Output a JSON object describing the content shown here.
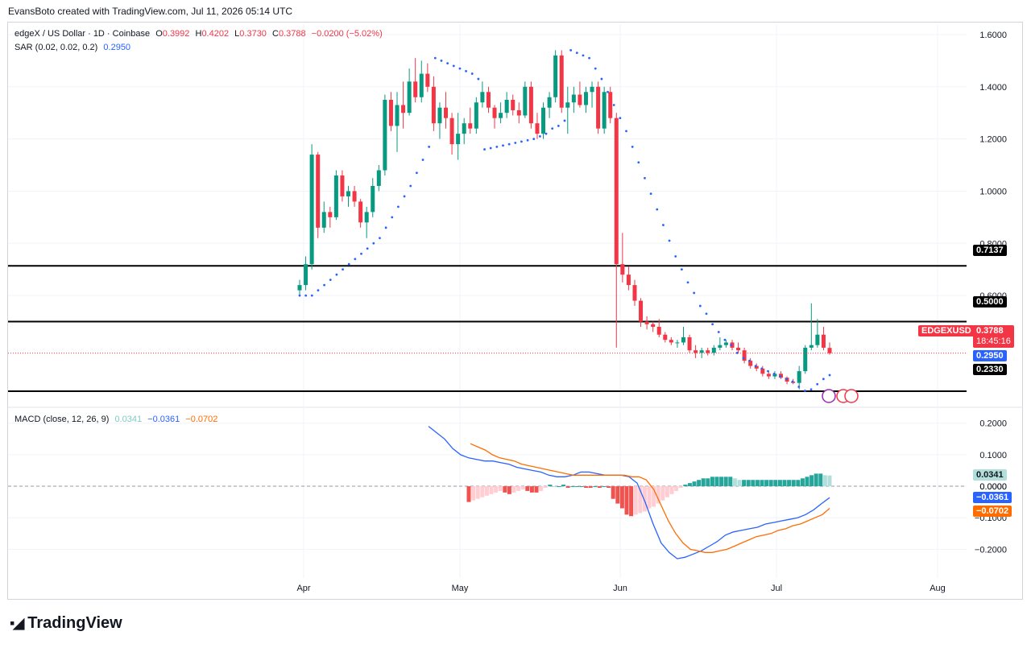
{
  "header": {
    "attribution": "EvansBoto created with TradingView.com, Jul 11, 2026 05:14 UTC"
  },
  "legend": {
    "symbol": "edgeX / US Dollar · 1D · Coinbase",
    "open_label": "O",
    "open": "0.3992",
    "high_label": "H",
    "high": "0.4202",
    "low_label": "L",
    "low": "0.3730",
    "close_label": "C",
    "close": "0.3788",
    "change": "−0.0200 (−5.02%)",
    "sar_label": "SAR (0.02, 0.02, 0.2)",
    "sar_value": "0.2950",
    "macd_label": "MACD (close, 12, 26, 9)",
    "macd_hist": "0.0341",
    "macd_line": "−0.0361",
    "macd_signal": "−0.0702"
  },
  "tags": {
    "level_7137": "0.7137",
    "level_5000": "0.5000",
    "level_2330": "0.2330",
    "symbol": "EDGEXUSD",
    "price": "0.3788",
    "countdown": "18:45:16",
    "sar": "0.2950",
    "hist": "0.0341",
    "zero": "0.0000",
    "macd": "−0.0361",
    "signal": "−0.0702"
  },
  "logo": {
    "text": "TradingView"
  },
  "colors": {
    "up": "#089981",
    "down": "#f23645",
    "sar": "#2962ff",
    "macd": "#2962ff",
    "signal": "#ff6d00",
    "hist_up_strong": "#26a69a",
    "hist_up_weak": "#b2dfdb",
    "hist_down_strong": "#ef5350",
    "hist_down_weak": "#ffcdd2"
  },
  "chart_data": [
    {
      "type": "candlestick",
      "title": "edgeX / US Dollar · 1D · Coinbase",
      "x_ticks": [
        "Apr",
        "May",
        "Jun",
        "Jul",
        "Aug"
      ],
      "y_ticks": [
        "1.6000",
        "1.4000",
        "1.2000",
        "1.0000",
        "0.8000",
        "0.6000"
      ],
      "ylim": [
        0.19,
        1.64
      ],
      "horizontal_levels": [
        0.7137,
        0.5,
        0.233
      ],
      "candles": [
        {
          "o": 0.62,
          "h": 0.66,
          "l": 0.6,
          "c": 0.64
        },
        {
          "o": 0.64,
          "h": 0.75,
          "l": 0.62,
          "c": 0.72
        },
        {
          "o": 0.72,
          "h": 1.18,
          "l": 0.7,
          "c": 1.14
        },
        {
          "o": 1.14,
          "h": 1.15,
          "l": 0.82,
          "c": 0.86
        },
        {
          "o": 0.86,
          "h": 0.96,
          "l": 0.84,
          "c": 0.92
        },
        {
          "o": 0.92,
          "h": 0.94,
          "l": 0.86,
          "c": 0.9
        },
        {
          "o": 0.9,
          "h": 1.08,
          "l": 0.89,
          "c": 1.06
        },
        {
          "o": 1.06,
          "h": 1.08,
          "l": 0.96,
          "c": 0.98
        },
        {
          "o": 0.98,
          "h": 1.02,
          "l": 0.94,
          "c": 1.0
        },
        {
          "o": 1.0,
          "h": 1.02,
          "l": 0.94,
          "c": 0.96
        },
        {
          "o": 0.96,
          "h": 0.97,
          "l": 0.86,
          "c": 0.88
        },
        {
          "o": 0.88,
          "h": 0.94,
          "l": 0.82,
          "c": 0.92
        },
        {
          "o": 0.92,
          "h": 1.05,
          "l": 0.9,
          "c": 1.02
        },
        {
          "o": 1.02,
          "h": 1.1,
          "l": 1.0,
          "c": 1.08
        },
        {
          "o": 1.08,
          "h": 1.37,
          "l": 1.06,
          "c": 1.35
        },
        {
          "o": 1.35,
          "h": 1.38,
          "l": 1.23,
          "c": 1.25
        },
        {
          "o": 1.25,
          "h": 1.38,
          "l": 1.15,
          "c": 1.33
        },
        {
          "o": 1.33,
          "h": 1.42,
          "l": 1.24,
          "c": 1.3
        },
        {
          "o": 1.3,
          "h": 1.47,
          "l": 1.29,
          "c": 1.42
        },
        {
          "o": 1.42,
          "h": 1.51,
          "l": 1.34,
          "c": 1.36
        },
        {
          "o": 1.36,
          "h": 1.5,
          "l": 1.34,
          "c": 1.45
        },
        {
          "o": 1.45,
          "h": 1.49,
          "l": 1.38,
          "c": 1.4
        },
        {
          "o": 1.4,
          "h": 1.44,
          "l": 1.23,
          "c": 1.26
        },
        {
          "o": 1.26,
          "h": 1.34,
          "l": 1.2,
          "c": 1.32
        },
        {
          "o": 1.32,
          "h": 1.38,
          "l": 1.24,
          "c": 1.28
        },
        {
          "o": 1.28,
          "h": 1.3,
          "l": 1.14,
          "c": 1.18
        },
        {
          "o": 1.18,
          "h": 1.3,
          "l": 1.12,
          "c": 1.22
        },
        {
          "o": 1.22,
          "h": 1.28,
          "l": 1.18,
          "c": 1.26
        },
        {
          "o": 1.26,
          "h": 1.32,
          "l": 1.22,
          "c": 1.24
        },
        {
          "o": 1.24,
          "h": 1.36,
          "l": 1.22,
          "c": 1.34
        },
        {
          "o": 1.34,
          "h": 1.42,
          "l": 1.32,
          "c": 1.38
        },
        {
          "o": 1.38,
          "h": 1.4,
          "l": 1.3,
          "c": 1.32
        },
        {
          "o": 1.32,
          "h": 1.33,
          "l": 1.24,
          "c": 1.28
        },
        {
          "o": 1.28,
          "h": 1.34,
          "l": 1.26,
          "c": 1.3
        },
        {
          "o": 1.3,
          "h": 1.38,
          "l": 1.28,
          "c": 1.35
        },
        {
          "o": 1.35,
          "h": 1.37,
          "l": 1.29,
          "c": 1.31
        },
        {
          "o": 1.31,
          "h": 1.34,
          "l": 1.26,
          "c": 1.29
        },
        {
          "o": 1.29,
          "h": 1.42,
          "l": 1.28,
          "c": 1.4
        },
        {
          "o": 1.4,
          "h": 1.42,
          "l": 1.24,
          "c": 1.26
        },
        {
          "o": 1.26,
          "h": 1.3,
          "l": 1.2,
          "c": 1.22
        },
        {
          "o": 1.22,
          "h": 1.34,
          "l": 1.2,
          "c": 1.32
        },
        {
          "o": 1.32,
          "h": 1.38,
          "l": 1.28,
          "c": 1.36
        },
        {
          "o": 1.36,
          "h": 1.54,
          "l": 1.34,
          "c": 1.52
        },
        {
          "o": 1.52,
          "h": 1.54,
          "l": 1.3,
          "c": 1.32
        },
        {
          "o": 1.32,
          "h": 1.4,
          "l": 1.22,
          "c": 1.34
        },
        {
          "o": 1.34,
          "h": 1.4,
          "l": 1.3,
          "c": 1.37
        },
        {
          "o": 1.37,
          "h": 1.42,
          "l": 1.32,
          "c": 1.33
        },
        {
          "o": 1.33,
          "h": 1.4,
          "l": 1.3,
          "c": 1.38
        },
        {
          "o": 1.38,
          "h": 1.42,
          "l": 1.32,
          "c": 1.4
        },
        {
          "o": 1.4,
          "h": 1.42,
          "l": 1.22,
          "c": 1.24
        },
        {
          "o": 1.24,
          "h": 1.4,
          "l": 1.22,
          "c": 1.38
        },
        {
          "o": 1.38,
          "h": 1.4,
          "l": 1.26,
          "c": 1.28
        },
        {
          "o": 1.28,
          "h": 1.3,
          "l": 0.4,
          "c": 0.72
        },
        {
          "o": 0.72,
          "h": 0.84,
          "l": 0.65,
          "c": 0.68
        },
        {
          "o": 0.68,
          "h": 0.71,
          "l": 0.62,
          "c": 0.64
        },
        {
          "o": 0.64,
          "h": 0.66,
          "l": 0.56,
          "c": 0.58
        },
        {
          "o": 0.58,
          "h": 0.59,
          "l": 0.48,
          "c": 0.5
        },
        {
          "o": 0.5,
          "h": 0.52,
          "l": 0.47,
          "c": 0.49
        },
        {
          "o": 0.49,
          "h": 0.5,
          "l": 0.46,
          "c": 0.48
        },
        {
          "o": 0.48,
          "h": 0.51,
          "l": 0.44,
          "c": 0.45
        },
        {
          "o": 0.45,
          "h": 0.46,
          "l": 0.42,
          "c": 0.43
        },
        {
          "o": 0.43,
          "h": 0.44,
          "l": 0.41,
          "c": 0.42
        },
        {
          "o": 0.42,
          "h": 0.43,
          "l": 0.4,
          "c": 0.42
        },
        {
          "o": 0.42,
          "h": 0.48,
          "l": 0.41,
          "c": 0.44
        },
        {
          "o": 0.44,
          "h": 0.45,
          "l": 0.38,
          "c": 0.39
        },
        {
          "o": 0.39,
          "h": 0.41,
          "l": 0.36,
          "c": 0.38
        },
        {
          "o": 0.38,
          "h": 0.4,
          "l": 0.36,
          "c": 0.39
        },
        {
          "o": 0.39,
          "h": 0.4,
          "l": 0.37,
          "c": 0.38
        },
        {
          "o": 0.38,
          "h": 0.41,
          "l": 0.37,
          "c": 0.4
        },
        {
          "o": 0.4,
          "h": 0.44,
          "l": 0.39,
          "c": 0.41
        },
        {
          "o": 0.41,
          "h": 0.43,
          "l": 0.4,
          "c": 0.42
        },
        {
          "o": 0.42,
          "h": 0.43,
          "l": 0.39,
          "c": 0.4
        },
        {
          "o": 0.4,
          "h": 0.42,
          "l": 0.38,
          "c": 0.39
        },
        {
          "o": 0.39,
          "h": 0.4,
          "l": 0.34,
          "c": 0.35
        },
        {
          "o": 0.35,
          "h": 0.36,
          "l": 0.32,
          "c": 0.33
        },
        {
          "o": 0.33,
          "h": 0.34,
          "l": 0.31,
          "c": 0.32
        },
        {
          "o": 0.32,
          "h": 0.33,
          "l": 0.29,
          "c": 0.3
        },
        {
          "o": 0.3,
          "h": 0.31,
          "l": 0.28,
          "c": 0.29
        },
        {
          "o": 0.29,
          "h": 0.31,
          "l": 0.28,
          "c": 0.3
        },
        {
          "o": 0.3,
          "h": 0.31,
          "l": 0.28,
          "c": 0.285
        },
        {
          "o": 0.285,
          "h": 0.29,
          "l": 0.26,
          "c": 0.27
        },
        {
          "o": 0.27,
          "h": 0.28,
          "l": 0.26,
          "c": 0.265
        },
        {
          "o": 0.265,
          "h": 0.33,
          "l": 0.24,
          "c": 0.31
        },
        {
          "o": 0.31,
          "h": 0.41,
          "l": 0.3,
          "c": 0.4
        },
        {
          "o": 0.4,
          "h": 0.57,
          "l": 0.39,
          "c": 0.41
        },
        {
          "o": 0.41,
          "h": 0.51,
          "l": 0.4,
          "c": 0.45
        },
        {
          "o": 0.45,
          "h": 0.48,
          "l": 0.39,
          "c": 0.4
        },
        {
          "o": 0.3992,
          "h": 0.4202,
          "l": 0.373,
          "c": 0.3788
        }
      ],
      "sar_points": [
        0.6,
        0.6,
        0.6,
        0.62,
        0.64,
        0.66,
        0.68,
        0.7,
        0.72,
        0.74,
        0.76,
        0.78,
        0.8,
        0.82,
        0.86,
        0.9,
        0.94,
        0.98,
        1.02,
        1.07,
        1.12,
        1.17,
        1.51,
        1.5,
        1.49,
        1.48,
        1.47,
        1.46,
        1.45,
        1.43,
        1.16,
        1.165,
        1.17,
        1.175,
        1.18,
        1.185,
        1.19,
        1.195,
        1.2,
        1.21,
        1.22,
        1.24,
        1.25,
        1.27,
        1.54,
        1.53,
        1.52,
        1.51,
        1.47,
        1.43,
        1.38,
        1.33,
        1.28,
        1.23,
        1.17,
        1.11,
        1.05,
        0.99,
        0.93,
        0.87,
        0.81,
        0.75,
        0.7,
        0.65,
        0.61,
        0.56,
        0.53,
        0.49,
        0.46,
        0.43,
        0.41,
        0.38,
        0.36,
        0.35,
        0.33,
        0.32,
        0.31,
        0.3,
        0.29,
        0.28,
        0.27,
        0.25,
        0.235,
        0.24,
        0.26,
        0.28,
        0.295
      ]
    },
    {
      "type": "line",
      "title": "MACD (close, 12, 26, 9)",
      "y_ticks": [
        "0.2000",
        "0.1000",
        "0.0000",
        "−0.1000",
        "−0.2000"
      ],
      "ylim": [
        -0.245,
        0.235
      ],
      "series": [
        {
          "name": "MACD",
          "values": [
            0.19,
            0.17,
            0.15,
            0.12,
            0.1,
            0.09,
            0.085,
            0.08,
            0.08,
            0.075,
            0.07,
            0.06,
            0.055,
            0.05,
            0.045,
            0.035,
            0.03,
            0.03,
            0.035,
            0.045,
            0.045,
            0.04,
            0.035,
            0.035,
            0.035,
            0.03,
            0.01,
            -0.05,
            -0.12,
            -0.18,
            -0.21,
            -0.23,
            -0.225,
            -0.215,
            -0.205,
            -0.19,
            -0.175,
            -0.155,
            -0.145,
            -0.14,
            -0.135,
            -0.13,
            -0.12,
            -0.115,
            -0.11,
            -0.105,
            -0.1,
            -0.09,
            -0.075,
            -0.055,
            -0.0361
          ]
        },
        {
          "name": "Signal",
          "values": [
            0.135,
            0.125,
            0.115,
            0.1,
            0.09,
            0.085,
            0.08,
            0.07,
            0.065,
            0.06,
            0.055,
            0.05,
            0.045,
            0.04,
            0.035,
            0.035,
            0.035,
            0.035,
            0.035,
            0.035,
            0.035,
            0.035,
            0.03,
            0.03,
            0.02,
            -0.01,
            -0.06,
            -0.11,
            -0.15,
            -0.18,
            -0.2,
            -0.205,
            -0.21,
            -0.21,
            -0.205,
            -0.2,
            -0.19,
            -0.18,
            -0.17,
            -0.16,
            -0.155,
            -0.15,
            -0.14,
            -0.135,
            -0.125,
            -0.12,
            -0.11,
            -0.1,
            -0.09,
            -0.0702
          ]
        }
      ],
      "histogram": [
        -0.05,
        -0.045,
        -0.04,
        -0.035,
        -0.03,
        -0.025,
        -0.02,
        -0.015,
        -0.02,
        -0.025,
        -0.02,
        -0.015,
        -0.01,
        -0.015,
        -0.02,
        -0.02,
        -0.015,
        -0.005,
        0.005,
        0.0,
        0.0,
        0.005,
        -0.005,
        0.0,
        0.0,
        0.0,
        -0.005,
        -0.005,
        0.0,
        -0.005,
        0.0,
        -0.005,
        -0.04,
        -0.055,
        -0.07,
        -0.09,
        -0.095,
        -0.09,
        -0.085,
        -0.08,
        -0.07,
        -0.065,
        -0.055,
        -0.045,
        -0.035,
        -0.025,
        -0.015,
        -0.005,
        0.005,
        0.01,
        0.015,
        0.02,
        0.025,
        0.025,
        0.03,
        0.03,
        0.03,
        0.03,
        0.03,
        0.025,
        0.02,
        0.02,
        0.02,
        0.02,
        0.02,
        0.02,
        0.02,
        0.02,
        0.02,
        0.02,
        0.02,
        0.02,
        0.02,
        0.02,
        0.025,
        0.03,
        0.035,
        0.04,
        0.04,
        0.035,
        0.0341
      ]
    }
  ]
}
